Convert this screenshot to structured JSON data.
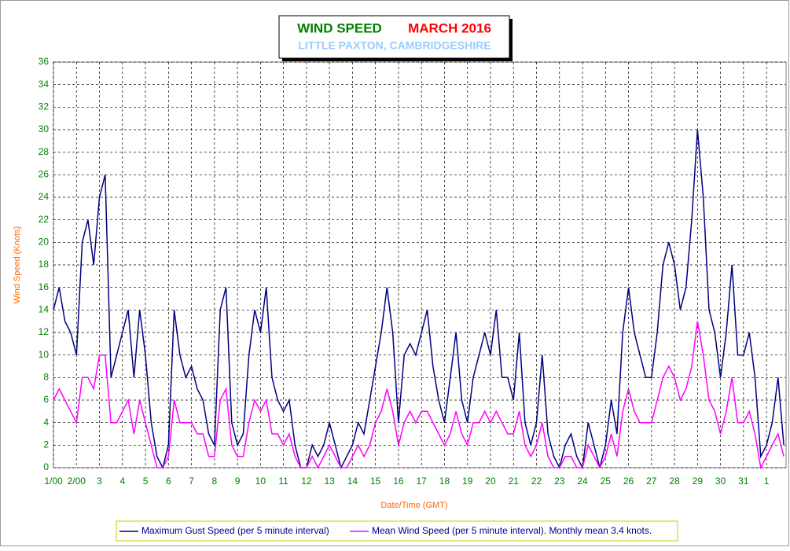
{
  "chart_data": {
    "type": "line",
    "title": "WIND SPEED",
    "title_month": "MARCH 2016",
    "subtitle": "LITTLE PAXTON, CAMBRIDGESHIRE",
    "y_label": "Wind Speed (Knots)",
    "x_label": "Date/Time (GMT)",
    "grid": true,
    "xlim": [
      0,
      31.85
    ],
    "ylim": [
      0,
      36
    ],
    "yticks": [
      0,
      2,
      4,
      6,
      8,
      10,
      12,
      14,
      16,
      18,
      20,
      22,
      24,
      26,
      28,
      30,
      32,
      34,
      36
    ],
    "xticks": [
      {
        "value": 0,
        "label": "1/00"
      },
      {
        "value": 1,
        "label": "2/00"
      },
      {
        "value": 2,
        "label": "3"
      },
      {
        "value": 3,
        "label": "4"
      },
      {
        "value": 4,
        "label": "5"
      },
      {
        "value": 5,
        "label": "6"
      },
      {
        "value": 6,
        "label": "7"
      },
      {
        "value": 7,
        "label": "8"
      },
      {
        "value": 8,
        "label": "9"
      },
      {
        "value": 9,
        "label": "10"
      },
      {
        "value": 10,
        "label": "11"
      },
      {
        "value": 11,
        "label": "12"
      },
      {
        "value": 12,
        "label": "13"
      },
      {
        "value": 13,
        "label": "14"
      },
      {
        "value": 14,
        "label": "15"
      },
      {
        "value": 15,
        "label": "16"
      },
      {
        "value": 16,
        "label": "17"
      },
      {
        "value": 17,
        "label": "18"
      },
      {
        "value": 18,
        "label": "19"
      },
      {
        "value": 19,
        "label": "20"
      },
      {
        "value": 20,
        "label": "21"
      },
      {
        "value": 21,
        "label": "22"
      },
      {
        "value": 22,
        "label": "23"
      },
      {
        "value": 23,
        "label": "24"
      },
      {
        "value": 24,
        "label": "25"
      },
      {
        "value": 25,
        "label": "26"
      },
      {
        "value": 26,
        "label": "27"
      },
      {
        "value": 27,
        "label": "28"
      },
      {
        "value": 28,
        "label": "29"
      },
      {
        "value": 29,
        "label": "30"
      },
      {
        "value": 30,
        "label": "31"
      },
      {
        "value": 31,
        "label": "1"
      }
    ],
    "x": [
      0,
      0.25,
      0.5,
      0.75,
      1,
      1.25,
      1.5,
      1.75,
      2,
      2.25,
      2.5,
      2.75,
      3,
      3.25,
      3.5,
      3.75,
      4,
      4.25,
      4.5,
      4.75,
      5,
      5.25,
      5.5,
      5.75,
      6,
      6.25,
      6.5,
      6.75,
      7,
      7.25,
      7.5,
      7.75,
      8,
      8.25,
      8.5,
      8.75,
      9,
      9.25,
      9.5,
      9.75,
      10,
      10.25,
      10.5,
      10.75,
      11,
      11.25,
      11.5,
      11.75,
      12,
      12.25,
      12.5,
      12.75,
      13,
      13.25,
      13.5,
      13.75,
      14,
      14.25,
      14.5,
      14.75,
      15,
      15.25,
      15.5,
      15.75,
      16,
      16.25,
      16.5,
      16.75,
      17,
      17.25,
      17.5,
      17.75,
      18,
      18.25,
      18.5,
      18.75,
      19,
      19.25,
      19.5,
      19.75,
      20,
      20.25,
      20.5,
      20.75,
      21,
      21.25,
      21.5,
      21.75,
      22,
      22.25,
      22.5,
      22.75,
      23,
      23.25,
      23.5,
      23.75,
      24,
      24.25,
      24.5,
      24.75,
      25,
      25.25,
      25.5,
      25.75,
      26,
      26.25,
      26.5,
      26.75,
      27,
      27.25,
      27.5,
      27.75,
      28,
      28.25,
      28.5,
      28.75,
      29,
      29.25,
      29.5,
      29.75,
      30,
      30.25,
      30.5,
      30.75,
      31,
      31.25,
      31.5,
      31.75
    ],
    "series": [
      {
        "name": "Maximum Gust Speed (per 5 minute interval)",
        "color": "#000080",
        "values": [
          14,
          16,
          13,
          12,
          10,
          20,
          22,
          18,
          24,
          26,
          8,
          10,
          12,
          14,
          8,
          14,
          10,
          4,
          1,
          0,
          2,
          14,
          10,
          8,
          9,
          7,
          6,
          3,
          2,
          14,
          16,
          4,
          2,
          3,
          10,
          14,
          12,
          16,
          8,
          6,
          5,
          6,
          2,
          0,
          0,
          2,
          1,
          2,
          4,
          2,
          0,
          1,
          2,
          4,
          3,
          6,
          9,
          12,
          16,
          12,
          4,
          10,
          11,
          10,
          12,
          14,
          9,
          6,
          4,
          8,
          12,
          6,
          4,
          8,
          10,
          12,
          10,
          14,
          8,
          8,
          6,
          12,
          4,
          2,
          4,
          10,
          3,
          1,
          0,
          2,
          3,
          1,
          0,
          4,
          2,
          0,
          2,
          6,
          3,
          12,
          16,
          12,
          10,
          8,
          8,
          12,
          18,
          20,
          18,
          14,
          16,
          22,
          30,
          24,
          14,
          12,
          8,
          12,
          18,
          10,
          10,
          12,
          8,
          1,
          2,
          4,
          8,
          2
        ]
      },
      {
        "name": "Mean Wind Speed (per 5 minute interval). Monthly mean 3.4 knots.",
        "color": "#ff00ff",
        "values": [
          6,
          7,
          6,
          5,
          4,
          8,
          8,
          7,
          10,
          10,
          4,
          4,
          5,
          6,
          3,
          6,
          4,
          2,
          0,
          0,
          1,
          6,
          4,
          4,
          4,
          3,
          3,
          1,
          1,
          6,
          7,
          2,
          1,
          1,
          4,
          6,
          5,
          6,
          3,
          3,
          2,
          3,
          1,
          0,
          0,
          1,
          0,
          1,
          2,
          1,
          0,
          0,
          1,
          2,
          1,
          2,
          4,
          5,
          7,
          5,
          2,
          4,
          5,
          4,
          5,
          5,
          4,
          3,
          2,
          3,
          5,
          3,
          2,
          4,
          4,
          5,
          4,
          5,
          4,
          3,
          3,
          5,
          2,
          1,
          2,
          4,
          1,
          0,
          0,
          1,
          1,
          0,
          0,
          2,
          1,
          0,
          1,
          3,
          1,
          5,
          7,
          5,
          4,
          4,
          4,
          6,
          8,
          9,
          8,
          6,
          7,
          9,
          13,
          10,
          6,
          5,
          3,
          5,
          8,
          4,
          4,
          5,
          3,
          0,
          1,
          2,
          3,
          1
        ]
      }
    ]
  }
}
